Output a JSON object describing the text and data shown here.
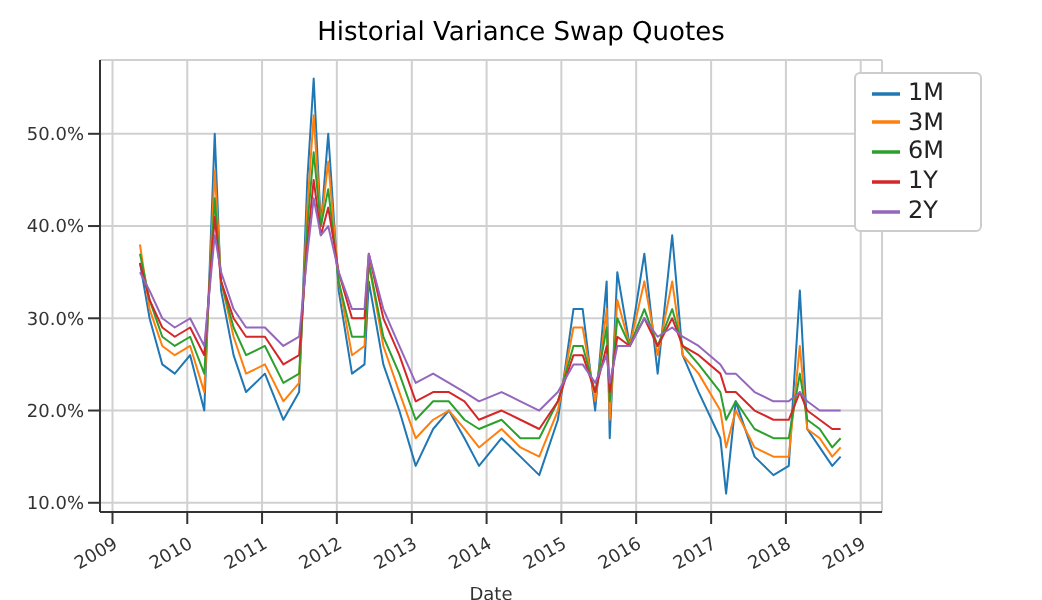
{
  "chart_data": {
    "type": "line",
    "title": "Historial Variance Swap Quotes",
    "xlabel": "Date",
    "x": [
      "2009-05-15",
      "2009-07-01",
      "2009-09-01",
      "2009-11-01",
      "2010-01-15",
      "2010-03-25",
      "2010-05-15",
      "2010-06-15",
      "2010-08-15",
      "2010-10-15",
      "2011-01-15",
      "2011-04-15",
      "2011-07-01",
      "2011-08-10",
      "2011-09-10",
      "2011-10-15",
      "2011-11-20",
      "2012-01-10",
      "2012-03-15",
      "2012-05-15",
      "2012-06-05",
      "2012-08-15",
      "2012-11-01",
      "2013-01-20",
      "2013-04-15",
      "2013-07-01",
      "2013-09-15",
      "2013-11-25",
      "2014-03-15",
      "2014-06-15",
      "2014-09-15",
      "2014-12-15",
      "2015-03-01",
      "2015-04-15",
      "2015-06-15",
      "2015-08-10",
      "2015-08-25",
      "2015-10-01",
      "2015-12-01",
      "2016-02-10",
      "2016-04-15",
      "2016-06-25",
      "2016-08-15",
      "2016-11-01",
      "2017-02-15",
      "2017-03-15",
      "2017-05-01",
      "2017-08-01",
      "2017-11-01",
      "2018-01-15",
      "2018-03-10",
      "2018-04-15",
      "2018-06-15",
      "2018-08-15",
      "2018-09-25"
    ],
    "series": [
      {
        "name": "1M",
        "color": "#1f77b4",
        "values": [
          36,
          30,
          25,
          24,
          26,
          20,
          50,
          33,
          26,
          22,
          24,
          19,
          22,
          45,
          56,
          40,
          50,
          33,
          24,
          25,
          34,
          25,
          20,
          14,
          18,
          20,
          17,
          14,
          17,
          15,
          13,
          19,
          31,
          31,
          20,
          34,
          17,
          35,
          27,
          37,
          24,
          39,
          26,
          22,
          17,
          11,
          21,
          15,
          13,
          14,
          33,
          18,
          16,
          14,
          15
        ]
      },
      {
        "name": "3M",
        "color": "#ff7f0e",
        "values": [
          38,
          31,
          27,
          26,
          27,
          22,
          46,
          34,
          28,
          24,
          25,
          21,
          23,
          42,
          52,
          40,
          47,
          34,
          26,
          27,
          36,
          27,
          22,
          17,
          19,
          20,
          18,
          16,
          18,
          16,
          15,
          20,
          29,
          29,
          21,
          31,
          19,
          32,
          27,
          34,
          26,
          34,
          26,
          24,
          20,
          16,
          20,
          16,
          15,
          15,
          27,
          18,
          17,
          15,
          16
        ]
      },
      {
        "name": "6M",
        "color": "#2ca02c",
        "values": [
          37,
          32,
          28,
          27,
          28,
          24,
          43,
          34,
          29,
          26,
          27,
          23,
          24,
          40,
          48,
          40,
          44,
          34,
          28,
          28,
          36,
          28,
          24,
          19,
          21,
          21,
          19,
          18,
          19,
          17,
          17,
          21,
          27,
          27,
          22,
          29,
          21,
          30,
          27,
          31,
          27,
          31,
          27,
          25,
          22,
          19,
          21,
          18,
          17,
          17,
          24,
          19,
          18,
          16,
          17
        ]
      },
      {
        "name": "1Y",
        "color": "#d62728",
        "values": [
          36,
          32,
          29,
          28,
          29,
          26,
          41,
          34,
          30,
          28,
          28,
          25,
          26,
          38,
          45,
          39,
          42,
          35,
          30,
          30,
          37,
          30,
          26,
          21,
          22,
          22,
          21,
          19,
          20,
          19,
          18,
          21,
          26,
          26,
          22,
          27,
          22,
          28,
          27,
          30,
          27,
          30,
          27,
          26,
          24,
          22,
          22,
          20,
          19,
          19,
          22,
          20,
          19,
          18,
          18
        ]
      },
      {
        "name": "2Y",
        "color": "#9467bd",
        "values": [
          35,
          33,
          30,
          29,
          30,
          27,
          39,
          35,
          31,
          29,
          29,
          27,
          28,
          37,
          43,
          39,
          40,
          35,
          31,
          31,
          37,
          31,
          27,
          23,
          24,
          23,
          22,
          21,
          22,
          21,
          20,
          22,
          25,
          25,
          23,
          26,
          23,
          27,
          27,
          30,
          28,
          29,
          28,
          27,
          25,
          24,
          24,
          22,
          21,
          21,
          22,
          21,
          20,
          20,
          20
        ]
      }
    ],
    "xlim": [
      "2008-11-01",
      "2019-04-15"
    ],
    "xticks": [
      "2009",
      "2010",
      "2011",
      "2012",
      "2013",
      "2014",
      "2015",
      "2016",
      "2017",
      "2018",
      "2019"
    ],
    "ylim": [
      9,
      58
    ],
    "yticks": [
      {
        "value": 10,
        "label": "10.0%"
      },
      {
        "value": 20,
        "label": "20.0%"
      },
      {
        "value": 30,
        "label": "30.0%"
      },
      {
        "value": 40,
        "label": "40.0%"
      },
      {
        "value": 50,
        "label": "50.0%"
      }
    ],
    "grid": true,
    "legend": "top right",
    "marker": "none",
    "line_style": "solid"
  }
}
